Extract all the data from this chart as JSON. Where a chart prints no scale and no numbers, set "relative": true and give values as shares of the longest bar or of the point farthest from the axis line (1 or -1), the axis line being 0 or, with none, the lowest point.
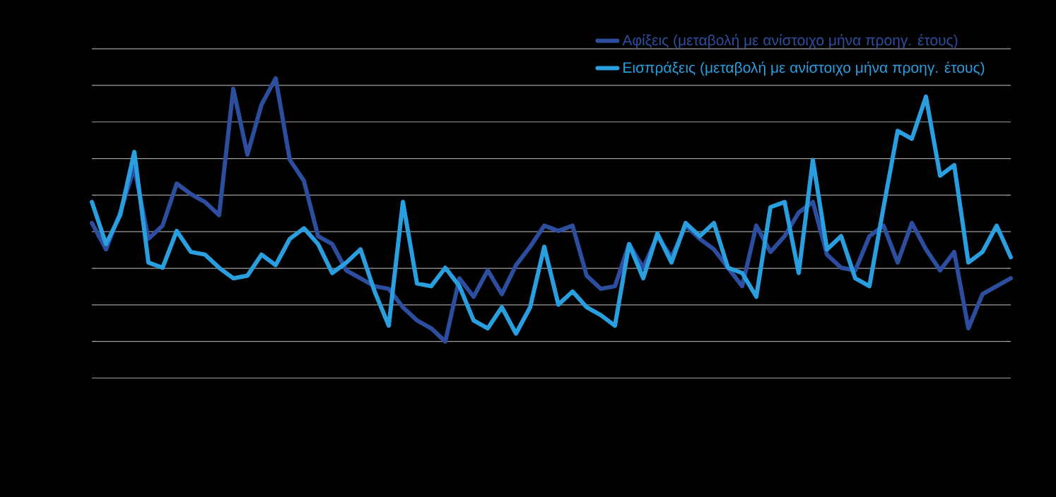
{
  "chart_data": {
    "type": "line",
    "relative": true,
    "grid": "y",
    "legend": "top right",
    "marker": "none",
    "line_style": "solid",
    "categories": [
      null,
      null,
      null,
      null,
      null,
      null,
      null,
      null,
      null,
      null,
      null,
      null,
      null,
      null,
      null,
      null,
      null,
      null,
      null,
      null,
      null,
      null,
      null,
      null,
      null,
      null,
      null,
      null,
      null,
      null,
      null,
      null,
      null,
      null,
      null,
      null,
      null,
      null,
      null,
      null,
      null,
      null,
      null,
      null,
      null,
      null,
      null,
      null,
      null,
      null,
      null,
      null,
      null,
      null,
      null,
      null,
      null,
      null,
      null,
      null,
      null,
      null,
      null,
      null,
      null,
      null
    ],
    "series": [
      {
        "name": "Αφίξεις (μεταβολή με ανίστοιχο μήνα προηγ. έτους)",
        "color": "#2d4e9e",
        "values": [
          0.45,
          0.35,
          0.49,
          0.66,
          0.39,
          0.44,
          0.6,
          0.56,
          0.53,
          0.48,
          0.96,
          0.71,
          0.9,
          1.0,
          0.69,
          0.61,
          0.4,
          0.37,
          0.27,
          0.24,
          0.21,
          0.2,
          0.13,
          0.08,
          0.05,
          0,
          0.24,
          0.17,
          0.27,
          0.18,
          0.29,
          0.36,
          0.44,
          0.42,
          0.44,
          0.25,
          0.2,
          0.21,
          0.37,
          0.28,
          0.4,
          0.32,
          0.44,
          0.39,
          0.35,
          0.28,
          0.21,
          0.44,
          0.34,
          0.4,
          0.49,
          0.53,
          0.33,
          0.28,
          0.27,
          0.4,
          0.44,
          0.3,
          0.45,
          0.35,
          0.27,
          0.34,
          0.05,
          0.18,
          0.21,
          0.24
        ]
      },
      {
        "name": "Εισπράξεις (μεταβολή με ανίστοιχο μήνα προηγ. έτους)",
        "color": "#2a9fdf",
        "values": [
          0.53,
          0.37,
          0.48,
          0.72,
          0.3,
          0.28,
          0.42,
          0.34,
          0.33,
          0.28,
          0.24,
          0.25,
          0.33,
          0.29,
          0.39,
          0.43,
          0.37,
          0.26,
          0.3,
          0.35,
          0.19,
          0.06,
          0.53,
          0.22,
          0.21,
          0.28,
          0.21,
          0.08,
          0.05,
          0.13,
          0.03,
          0.13,
          0.36,
          0.14,
          0.19,
          0.13,
          0.1,
          0.06,
          0.37,
          0.24,
          0.41,
          0.3,
          0.45,
          0.4,
          0.45,
          0.28,
          0.26,
          0.17,
          0.51,
          0.53,
          0.26,
          0.69,
          0.35,
          0.4,
          0.24,
          0.21,
          0.51,
          0.8,
          0.77,
          0.93,
          0.63,
          0.67,
          0.3,
          0.34,
          0.44,
          0.32
        ]
      }
    ]
  }
}
